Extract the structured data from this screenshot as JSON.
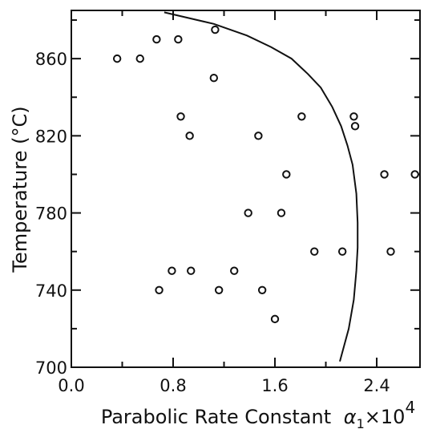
{
  "chart_data": {
    "type": "scatter",
    "title": "",
    "xlabel_text": "Parabolic Rate Constant",
    "xlabel_symbol": "α",
    "xlabel_sub": "1",
    "xlabel_mult": "×10",
    "xlabel_exp": "4",
    "ylabel": "Temperature (°C)",
    "xlim": [
      0.0,
      2.74
    ],
    "ylim": [
      700,
      885
    ],
    "xticks": [
      0.0,
      0.8,
      1.6,
      2.4
    ],
    "xtick_labels": [
      "0.0",
      "0.8",
      "1.6",
      "2.4"
    ],
    "yticks": [
      700,
      740,
      780,
      820,
      860
    ],
    "ytick_labels": [
      "700",
      "740",
      "780",
      "820",
      "860"
    ],
    "grid": false,
    "points": [
      {
        "x": 0.36,
        "y": 860
      },
      {
        "x": 0.54,
        "y": 860
      },
      {
        "x": 0.67,
        "y": 870
      },
      {
        "x": 0.84,
        "y": 870
      },
      {
        "x": 1.13,
        "y": 875
      },
      {
        "x": 1.12,
        "y": 850
      },
      {
        "x": 0.86,
        "y": 830
      },
      {
        "x": 0.93,
        "y": 820
      },
      {
        "x": 1.47,
        "y": 820
      },
      {
        "x": 1.81,
        "y": 830
      },
      {
        "x": 2.22,
        "y": 830
      },
      {
        "x": 2.23,
        "y": 825
      },
      {
        "x": 1.69,
        "y": 800
      },
      {
        "x": 2.46,
        "y": 800
      },
      {
        "x": 2.7,
        "y": 800
      },
      {
        "x": 1.39,
        "y": 780
      },
      {
        "x": 1.65,
        "y": 780
      },
      {
        "x": 1.91,
        "y": 760
      },
      {
        "x": 2.13,
        "y": 760
      },
      {
        "x": 2.51,
        "y": 760
      },
      {
        "x": 0.79,
        "y": 750
      },
      {
        "x": 0.94,
        "y": 750
      },
      {
        "x": 1.28,
        "y": 750
      },
      {
        "x": 0.69,
        "y": 740
      },
      {
        "x": 1.16,
        "y": 740
      },
      {
        "x": 1.5,
        "y": 740
      },
      {
        "x": 1.6,
        "y": 725
      }
    ],
    "curve": {
      "x": [
        2.11,
        2.18,
        2.22,
        2.24,
        2.25,
        2.25,
        2.24,
        2.21,
        2.17,
        2.12,
        2.05,
        1.96,
        1.86,
        1.73,
        1.57,
        1.38,
        1.12,
        0.73
      ],
      "y": [
        703,
        720,
        735,
        750,
        762,
        775,
        790,
        805,
        815,
        825,
        835,
        845,
        852,
        860,
        866,
        872,
        878,
        884
      ]
    }
  }
}
